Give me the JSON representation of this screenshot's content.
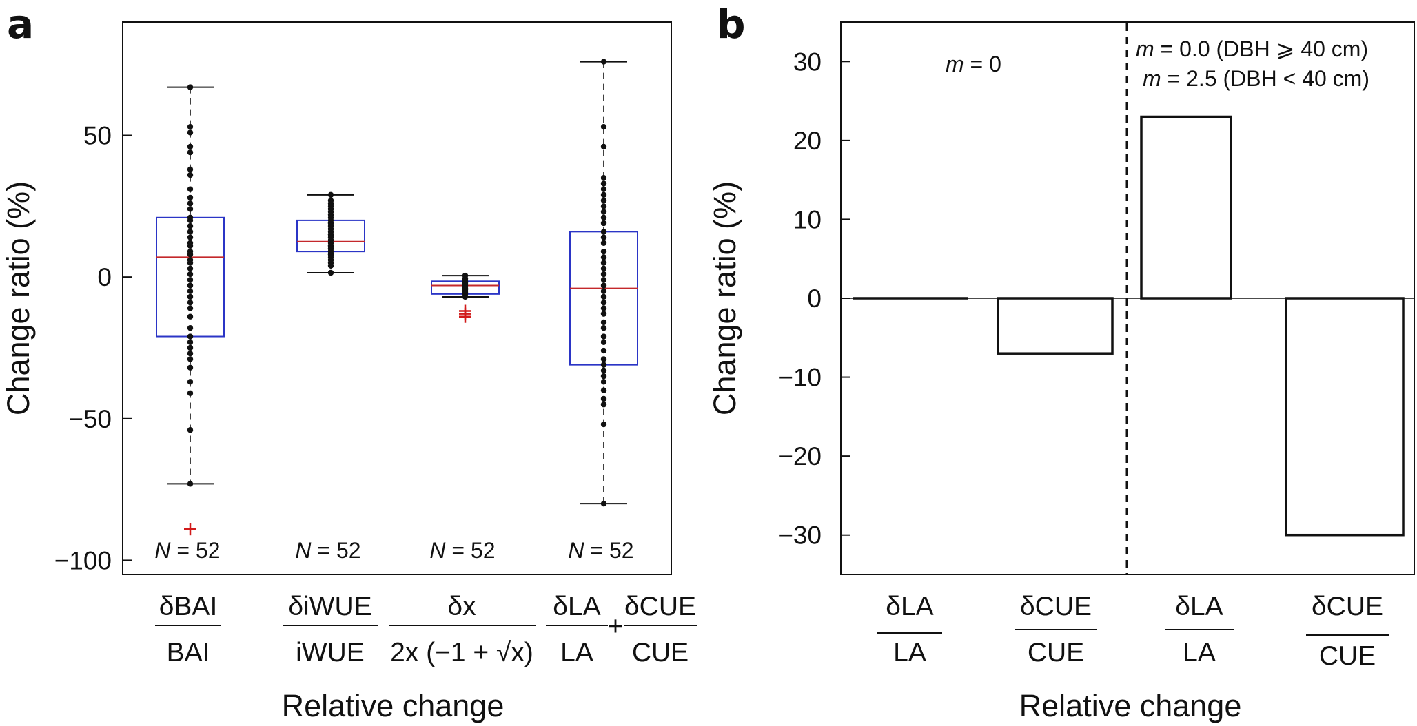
{
  "chart_data": [
    {
      "type": "box",
      "panel_label": "a",
      "xlabel": "Relative change",
      "ylabel": "Change ratio (%)",
      "ylim": [
        -105,
        90
      ],
      "yticks": [
        50,
        0,
        -50,
        -100
      ],
      "ytick_labels": [
        "50",
        "0",
        "−50",
        "−100"
      ],
      "categories": [
        {
          "numerator": "δBAI",
          "denominator": "BAI"
        },
        {
          "numerator": "δiWUE",
          "denominator": "iWUE"
        },
        {
          "numerator": "δx",
          "denominator": "2x (−1 + √x)"
        },
        {
          "numerator": "δLA",
          "denominator": "LA",
          "plus": "+",
          "numerator2": "δCUE",
          "denominator2": "CUE"
        }
      ],
      "n_label": "N = 52",
      "n_prefix": "N",
      "n_suffix": " = 52",
      "boxes": [
        {
          "q1": -21,
          "median": 7,
          "q3": 21,
          "whisker_low": -73,
          "whisker_high": 67,
          "outliers": [
            -89
          ],
          "points": [
            67,
            53,
            51,
            46,
            44,
            38,
            36,
            31,
            28,
            26,
            24,
            21,
            20,
            18,
            16,
            14,
            12,
            11,
            9,
            8,
            6,
            5,
            3,
            1,
            -1,
            -3,
            -5,
            -7,
            -9,
            -11,
            -14,
            -18,
            -21,
            -23,
            -25,
            -27,
            -29,
            -32,
            -37,
            -41,
            -54,
            -73
          ]
        },
        {
          "q1": 9,
          "median": 12.5,
          "q3": 20,
          "whisker_low": 1.5,
          "whisker_high": 29,
          "outliers": [],
          "points": [
            29,
            27,
            26,
            25,
            24,
            23,
            22,
            21,
            20,
            19,
            19,
            18,
            17,
            16,
            15,
            15,
            14,
            13,
            13,
            12,
            11,
            11,
            10,
            10,
            9,
            9,
            8,
            8,
            7,
            6,
            5,
            4,
            1.5
          ]
        },
        {
          "q1": -6,
          "median": -3,
          "q3": -1.5,
          "whisker_low": -7,
          "whisker_high": 0.5,
          "outliers": [
            -12,
            -13,
            -14
          ],
          "points": [
            0.5,
            -0.5,
            -1,
            -1.5,
            -2,
            -2.5,
            -3,
            -3.5,
            -4,
            -4.5,
            -5,
            -5.5,
            -6,
            -7
          ]
        },
        {
          "q1": -31,
          "median": -4,
          "q3": 16,
          "whisker_low": -80,
          "whisker_high": 76,
          "outliers": [],
          "points": [
            76,
            53,
            46,
            35,
            33,
            31,
            29,
            27,
            25,
            23,
            21,
            19,
            16,
            14,
            12,
            9,
            7,
            5,
            3,
            1,
            -1,
            -3,
            -5,
            -7,
            -9,
            -11,
            -13,
            -16,
            -18,
            -21,
            -23,
            -26,
            -29,
            -31,
            -33,
            -35,
            -37,
            -40,
            -43,
            -45,
            -52,
            -80
          ]
        }
      ]
    },
    {
      "type": "bar",
      "panel_label": "b",
      "xlabel": "Relative change",
      "ylabel": "Change ratio (%)",
      "ylim": [
        -35,
        35
      ],
      "yticks": [
        30,
        20,
        10,
        0,
        -10,
        -20,
        -30
      ],
      "ytick_labels": [
        "30",
        "20",
        "10",
        "0",
        "−10",
        "−20",
        "−30"
      ],
      "categories": [
        {
          "numerator": "δLA",
          "denominator": "LA"
        },
        {
          "numerator": "δCUE",
          "denominator": "CUE"
        },
        {
          "numerator": "δLA",
          "denominator": "LA"
        },
        {
          "numerator": "δCUE",
          "denominator": "CUE"
        }
      ],
      "values": [
        0,
        -7,
        23,
        -30
      ],
      "annotations": {
        "left": {
          "var": "m",
          "text": " = 0"
        },
        "right_line1": {
          "var": "m",
          "text": " = 0.0 (DBH ⩾ 40 cm)"
        },
        "right_line2": {
          "var": "m",
          "text": " = 2.5 (DBH < 40 cm)"
        }
      }
    }
  ]
}
